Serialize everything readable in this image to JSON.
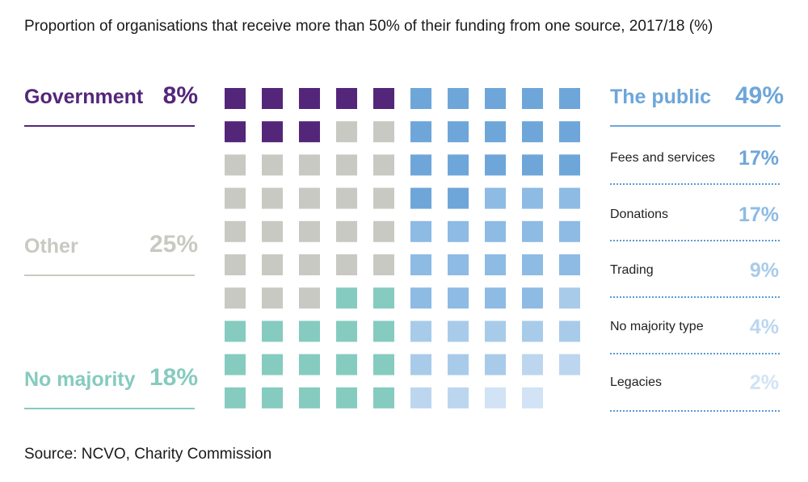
{
  "chart_data": {
    "type": "waffle",
    "title": "Proportion of organisations that receive more than 50% of their funding from one source, 2017/18 (%)",
    "source": "Source: NCVO, Charity Commission",
    "grid": {
      "rows": 10,
      "cols": 10
    },
    "left_groups": [
      {
        "name": "Government",
        "value": 8,
        "label": "8%",
        "color": "#54267a",
        "label_color": "#54267a"
      },
      {
        "name": "Other",
        "value": 25,
        "label": "25%",
        "color": "#c9c9c3",
        "label_color": "#c9c9c3"
      },
      {
        "name": "No majority",
        "value": 18,
        "label": "18%",
        "color": "#86cbbf",
        "label_color": "#86cbbf"
      }
    ],
    "public_group": {
      "name": "The public",
      "value": 49,
      "label": "49%",
      "color": "#6ea6d9"
    },
    "public_breakdown": [
      {
        "name": "Fees and services",
        "value": 17,
        "label": "17%",
        "color": "#6ea6d9"
      },
      {
        "name": "Donations",
        "value": 17,
        "label": "17%",
        "color": "#8dbbe4"
      },
      {
        "name": "Trading",
        "value": 9,
        "label": "9%",
        "color": "#a8cbea"
      },
      {
        "name": "No majority type",
        "value": 4,
        "label": "4%",
        "color": "#bcd6ef"
      },
      {
        "name": "Legacies",
        "value": 2,
        "label": "2%",
        "color": "#d1e3f4"
      }
    ]
  }
}
